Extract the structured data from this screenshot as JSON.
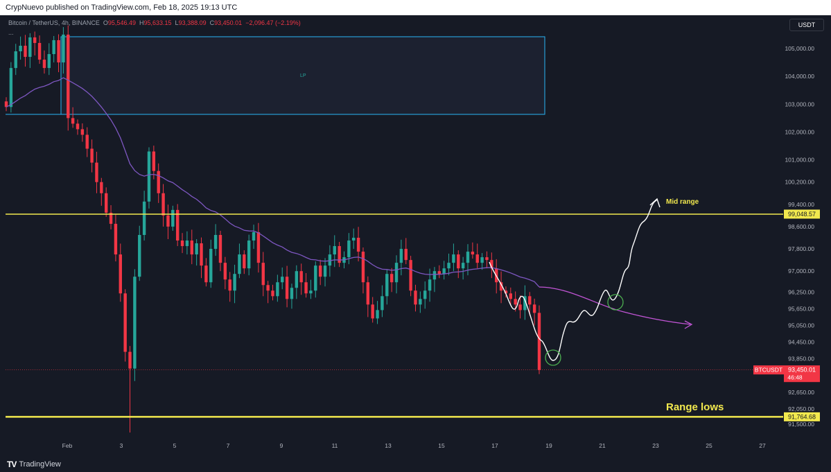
{
  "header": {
    "published_text": "CrypNuevo published on TradingView.com, Feb 18, 2025 19:13 UTC"
  },
  "legend": {
    "symbol": "Bitcoin / TetherUS, 4h, BINANCE",
    "open_label": "O",
    "open": "95,546.49",
    "high_label": "H",
    "high": "95,633.15",
    "low_label": "L",
    "low": "93,388.09",
    "close_label": "C",
    "close": "93,450.01",
    "change": "−2,096.47 (−2.19%)",
    "more": "..."
  },
  "toolbar": {
    "currency": "USDT"
  },
  "footer": {
    "brand": "TradingView",
    "brand_mark": "TV"
  },
  "chart_data": {
    "type": "candlestick",
    "instrument": "BTCUSDT",
    "interval": "4h",
    "y_range": [
      91300,
      105700
    ],
    "price_axis_ticks": [
      "105,000.00",
      "104,000.00",
      "103,000.00",
      "102,000.00",
      "101,000.00",
      "100,200.00",
      "99,400.00",
      "98,600.00",
      "97,800.00",
      "97,000.00",
      "96,250.00",
      "95,650.00",
      "95,050.00",
      "94,450.00",
      "93,850.00",
      "92,650.00",
      "92,050.00",
      "91,500.00"
    ],
    "time_axis_ticks": [
      "Feb",
      "3",
      "5",
      "7",
      "9",
      "11",
      "13",
      "15",
      "17",
      "19",
      "21",
      "23",
      "25",
      "27"
    ],
    "levels": [
      {
        "label": "Mid range",
        "price_label": "99,048.57",
        "price": 99048.57,
        "color": "#f2e94e"
      },
      {
        "label": "Range lows",
        "price_label": "91,764.68",
        "price": 91764.68,
        "color": "#f2e94e"
      }
    ],
    "zone_label": "LP",
    "current_price": {
      "ticker": "BTCUSDT",
      "price_label": "93,450.01",
      "countdown": "46:48",
      "price": 93450.01
    },
    "colors": {
      "up": "#26a69a",
      "down": "#f23645",
      "ma": "#7e57c2",
      "level": "#f2e94e",
      "bg": "#161a25",
      "projection": "#ffffff"
    }
  }
}
